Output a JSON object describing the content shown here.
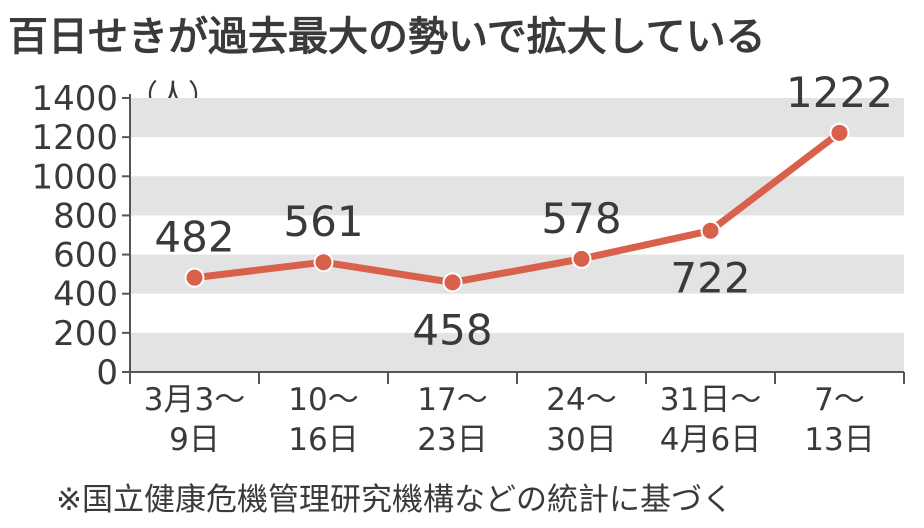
{
  "chart_data": {
    "type": "line",
    "title": "百日せきが過去最大の勢いで拡大している",
    "ylabel": "（人）",
    "categories": [
      [
        "3月3〜",
        "9日"
      ],
      [
        "10〜",
        "16日"
      ],
      [
        "17〜",
        "23日"
      ],
      [
        "24〜",
        "30日"
      ],
      [
        "31日〜",
        "4月6日"
      ],
      [
        "7〜",
        "13日"
      ]
    ],
    "values": [
      482,
      561,
      458,
      578,
      722,
      1222
    ],
    "data_labels": [
      "482",
      "561",
      "458",
      "578",
      "722",
      "1222"
    ],
    "yticks": [
      0,
      200,
      400,
      600,
      800,
      1000,
      1200,
      1400
    ],
    "ylim": [
      0,
      1400
    ],
    "grid": "alternating horizontal bands",
    "note": "※国立健康危機管理研究機構などの統計に基づく",
    "colors": {
      "line": "#d9604a",
      "band": "#e3e3e3",
      "text": "#3a3a3a"
    }
  }
}
